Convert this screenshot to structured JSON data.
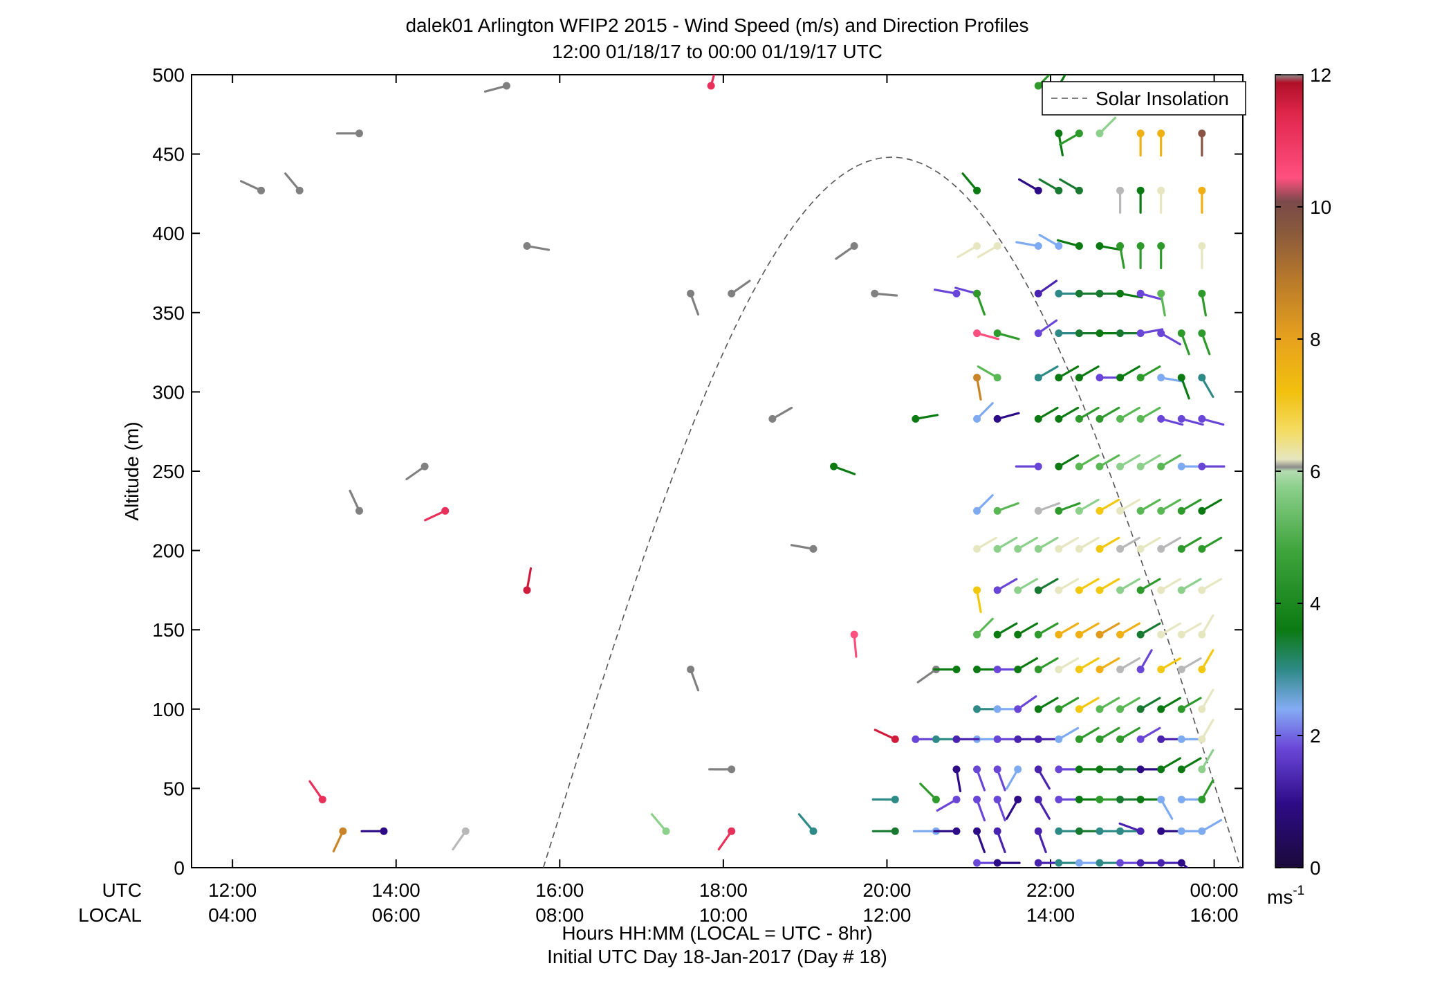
{
  "chart_data": {
    "type": "scatter",
    "subtype": "wind-barb-profile",
    "title": "dalek01 Arlington WFIP2 2015 - Wind Speed (m/s) and Direction Profiles",
    "subtitle": "12:00 01/18/17 to 00:00 01/19/17  UTC",
    "ylabel": "Altitude (m)",
    "xlabel": "Hours HH:MM  (LOCAL = UTC - 8hr)",
    "xlabel2": "Initial UTC Day 18-Jan-2017 (Day # 18)",
    "row_label_utc": "UTC",
    "row_label_local": "LOCAL",
    "x_range_hours": [
      11.5,
      24.35
    ],
    "ylim": [
      0,
      500
    ],
    "y_ticks": [
      0,
      50,
      100,
      150,
      200,
      250,
      300,
      350,
      400,
      450,
      500
    ],
    "x_ticks": [
      {
        "h": 12,
        "utc": "12:00",
        "local": "04:00"
      },
      {
        "h": 14,
        "utc": "14:00",
        "local": "06:00"
      },
      {
        "h": 16,
        "utc": "16:00",
        "local": "08:00"
      },
      {
        "h": 18,
        "utc": "18:00",
        "local": "10:00"
      },
      {
        "h": 20,
        "utc": "20:00",
        "local": "12:00"
      },
      {
        "h": 22,
        "utc": "22:00",
        "local": "14:00"
      },
      {
        "h": 24,
        "utc": "00:00",
        "local": "16:00"
      }
    ],
    "legend": {
      "label": "Solar Insolation",
      "position": "top-right"
    },
    "solar_insolation": {
      "start_h": 15.8,
      "peak_h": 20.08,
      "end_h": 24.32,
      "peak_alt": 448
    },
    "colorbar": {
      "min": 0,
      "max": 12,
      "ticks": [
        0,
        2,
        4,
        6,
        8,
        10,
        12
      ],
      "unit": "ms-1",
      "unit_base": "ms",
      "unit_exp": "-1"
    },
    "barbs_format": "[hour_utc, altitude_m, speed_m_s, barb_angle_deg_math]",
    "barbs": [
      [
        12.35,
        427,
        12.5,
        155
      ],
      [
        12.82,
        427,
        12.5,
        130
      ],
      [
        13.55,
        463,
        12.5,
        180
      ],
      [
        15.35,
        493,
        12.5,
        195
      ],
      [
        15.6,
        392,
        12.5,
        -10
      ],
      [
        14.35,
        253,
        12.5,
        215
      ],
      [
        13.55,
        225,
        12.5,
        115
      ],
      [
        14.6,
        225,
        11.0,
        205
      ],
      [
        13.1,
        43,
        11.0,
        125
      ],
      [
        15.6,
        175,
        11.3,
        80
      ],
      [
        13.35,
        23,
        8.5,
        245
      ],
      [
        13.85,
        23,
        0.5,
        180
      ],
      [
        14.85,
        23,
        6.0,
        235
      ],
      [
        17.85,
        493,
        11.0,
        75
      ],
      [
        17.6,
        362,
        12.5,
        -70
      ],
      [
        18.1,
        362,
        12.5,
        35
      ],
      [
        17.6,
        125,
        12.5,
        -70
      ],
      [
        18.1,
        62,
        12.5,
        180
      ],
      [
        17.3,
        23,
        5.5,
        130
      ],
      [
        18.1,
        23,
        11.0,
        235
      ],
      [
        18.6,
        283,
        12.5,
        30
      ],
      [
        19.1,
        23,
        2.5,
        130
      ],
      [
        19.1,
        201,
        12.5,
        170
      ],
      [
        19.6,
        392,
        12.5,
        215
      ],
      [
        19.35,
        253,
        3.8,
        -20
      ],
      [
        19.6,
        147,
        10.5,
        -85
      ],
      [
        19.85,
        362,
        12.5,
        -5
      ],
      [
        20.6,
        125,
        12.5,
        215
      ],
      [
        20.35,
        283,
        3.8,
        10
      ],
      [
        20.1,
        81,
        11.3,
        155
      ],
      [
        20.35,
        81,
        1.5,
        0
      ],
      [
        20.6,
        81,
        2.5,
        0
      ],
      [
        20.1,
        43,
        2.5,
        180
      ],
      [
        20.6,
        43,
        4.5,
        135
      ],
      [
        20.1,
        23,
        3.0,
        180
      ],
      [
        20.6,
        23,
        2.0,
        180
      ],
      [
        20.85,
        23,
        0.5,
        180
      ],
      [
        21.1,
        427,
        3.8,
        130
      ],
      [
        21.1,
        392,
        6.5,
        210
      ],
      [
        21.1,
        362,
        1.5,
        165
      ],
      [
        21.1,
        337,
        10.5,
        -15
      ],
      [
        21.1,
        309,
        8.5,
        -80
      ],
      [
        21.1,
        283,
        2.0,
        45
      ],
      [
        21.1,
        225,
        2.0,
        45
      ],
      [
        21.1,
        201,
        6.5,
        30
      ],
      [
        21.1,
        175,
        7.0,
        -80
      ],
      [
        21.1,
        147,
        5.0,
        45
      ],
      [
        21.1,
        125,
        3.8,
        0
      ],
      [
        21.1,
        100,
        2.5,
        0
      ],
      [
        21.1,
        81,
        2.0,
        0
      ],
      [
        21.1,
        62,
        1.5,
        -70
      ],
      [
        21.1,
        43,
        1.5,
        -70
      ],
      [
        21.1,
        23,
        0.5,
        -70
      ],
      [
        21.1,
        3,
        1.5,
        0
      ],
      [
        20.85,
        81,
        1.0,
        0
      ],
      [
        20.85,
        62,
        0.5,
        -80
      ],
      [
        20.85,
        43,
        1.5,
        210
      ],
      [
        20.85,
        125,
        3.5,
        180
      ],
      [
        20.85,
        362,
        1.5,
        170
      ],
      [
        21.35,
        309,
        5.0,
        150
      ],
      [
        21.35,
        283,
        0.5,
        15
      ],
      [
        21.35,
        225,
        5.0,
        20
      ],
      [
        21.35,
        201,
        5.5,
        30
      ],
      [
        21.35,
        175,
        1.5,
        30
      ],
      [
        21.35,
        147,
        3.8,
        30
      ],
      [
        21.35,
        125,
        1.5,
        0
      ],
      [
        21.35,
        100,
        2.0,
        0
      ],
      [
        21.35,
        81,
        1.5,
        0
      ],
      [
        21.35,
        62,
        1.5,
        -70
      ],
      [
        21.35,
        43,
        1.5,
        -70
      ],
      [
        21.35,
        23,
        1.0,
        -70
      ],
      [
        21.35,
        3,
        0.5,
        0
      ],
      [
        21.6,
        81,
        1.0,
        0
      ],
      [
        21.6,
        62,
        2.0,
        240
      ],
      [
        21.6,
        43,
        0.5,
        240
      ],
      [
        21.1,
        362,
        4.5,
        -70
      ],
      [
        21.35,
        337,
        4.0,
        -15
      ],
      [
        21.35,
        392,
        6.5,
        210
      ],
      [
        21.85,
        493,
        4.5,
        45
      ],
      [
        21.85,
        427,
        0.5,
        150
      ],
      [
        21.85,
        392,
        2.0,
        170
      ],
      [
        21.85,
        362,
        1.0,
        35
      ],
      [
        21.85,
        337,
        1.5,
        35
      ],
      [
        21.85,
        309,
        2.5,
        30
      ],
      [
        21.85,
        283,
        3.8,
        30
      ],
      [
        21.85,
        253,
        1.5,
        180
      ],
      [
        21.85,
        225,
        6.0,
        20
      ],
      [
        21.85,
        201,
        5.5,
        30
      ],
      [
        21.85,
        175,
        3.0,
        30
      ],
      [
        21.85,
        147,
        4.5,
        30
      ],
      [
        21.85,
        125,
        4.0,
        30
      ],
      [
        21.85,
        100,
        3.5,
        30
      ],
      [
        21.85,
        81,
        1.0,
        0
      ],
      [
        21.85,
        62,
        1.0,
        -60
      ],
      [
        21.85,
        43,
        1.0,
        -60
      ],
      [
        21.85,
        23,
        1.0,
        -70
      ],
      [
        21.85,
        3,
        1.0,
        0
      ],
      [
        21.6,
        100,
        1.5,
        35
      ],
      [
        21.6,
        125,
        3.5,
        30
      ],
      [
        21.6,
        147,
        3.5,
        30
      ],
      [
        21.6,
        175,
        5.5,
        30
      ],
      [
        21.6,
        201,
        5.5,
        30
      ],
      [
        22.1,
        493,
        3.8,
        60
      ],
      [
        22.1,
        463,
        3.8,
        -80
      ],
      [
        22.1,
        427,
        3.0,
        150
      ],
      [
        22.1,
        392,
        2.0,
        150
      ],
      [
        22.1,
        362,
        2.5,
        0
      ],
      [
        22.1,
        337,
        2.5,
        0
      ],
      [
        22.1,
        309,
        3.8,
        30
      ],
      [
        22.1,
        283,
        3.8,
        30
      ],
      [
        22.1,
        253,
        3.8,
        30
      ],
      [
        22.1,
        225,
        4.5,
        20
      ],
      [
        22.1,
        201,
        6.5,
        30
      ],
      [
        22.1,
        175,
        6.5,
        30
      ],
      [
        22.1,
        147,
        7.5,
        30
      ],
      [
        22.1,
        125,
        6.5,
        30
      ],
      [
        22.1,
        100,
        4.0,
        30
      ],
      [
        22.1,
        81,
        2.0,
        30
      ],
      [
        22.1,
        62,
        1.5,
        0
      ],
      [
        22.1,
        43,
        1.5,
        0
      ],
      [
        22.1,
        23,
        2.5,
        0
      ],
      [
        22.1,
        3,
        2.5,
        0
      ],
      [
        22.35,
        463,
        4.5,
        210
      ],
      [
        22.35,
        427,
        3.0,
        150
      ],
      [
        22.35,
        392,
        3.8,
        165
      ],
      [
        22.35,
        362,
        3.0,
        0
      ],
      [
        22.35,
        337,
        3.0,
        0
      ],
      [
        22.35,
        309,
        3.8,
        30
      ],
      [
        22.35,
        283,
        4.0,
        30
      ],
      [
        22.35,
        253,
        5.0,
        30
      ],
      [
        22.35,
        225,
        5.5,
        30
      ],
      [
        22.35,
        201,
        6.5,
        30
      ],
      [
        22.35,
        175,
        7.0,
        30
      ],
      [
        22.35,
        147,
        7.5,
        30
      ],
      [
        22.35,
        125,
        7.0,
        30
      ],
      [
        22.35,
        100,
        7.0,
        30
      ],
      [
        22.35,
        81,
        4.0,
        30
      ],
      [
        22.35,
        62,
        3.5,
        0
      ],
      [
        22.35,
        43,
        3.5,
        0
      ],
      [
        22.35,
        23,
        3.0,
        0
      ],
      [
        22.35,
        3,
        2.0,
        0
      ],
      [
        22.6,
        463,
        5.5,
        45
      ],
      [
        22.6,
        392,
        3.8,
        -10
      ],
      [
        22.6,
        362,
        3.0,
        0
      ],
      [
        22.6,
        337,
        3.8,
        0
      ],
      [
        22.6,
        309,
        1.5,
        0
      ],
      [
        22.6,
        283,
        4.0,
        30
      ],
      [
        22.6,
        253,
        5.0,
        30
      ],
      [
        22.6,
        225,
        7.0,
        30
      ],
      [
        22.6,
        201,
        7.0,
        30
      ],
      [
        22.6,
        175,
        7.0,
        30
      ],
      [
        22.6,
        147,
        8.0,
        30
      ],
      [
        22.6,
        125,
        7.5,
        30
      ],
      [
        22.6,
        100,
        5.0,
        30
      ],
      [
        22.6,
        81,
        4.5,
        30
      ],
      [
        22.6,
        62,
        3.5,
        0
      ],
      [
        22.6,
        43,
        4.0,
        0
      ],
      [
        22.6,
        23,
        2.5,
        0
      ],
      [
        22.6,
        3,
        2.5,
        0
      ],
      [
        22.85,
        427,
        6.0,
        -90
      ],
      [
        22.85,
        392,
        4.5,
        -80
      ],
      [
        22.85,
        362,
        3.5,
        -10
      ],
      [
        22.85,
        337,
        3.0,
        0
      ],
      [
        22.85,
        309,
        3.8,
        30
      ],
      [
        22.85,
        283,
        5.0,
        30
      ],
      [
        22.85,
        253,
        5.5,
        30
      ],
      [
        22.85,
        225,
        6.5,
        30
      ],
      [
        22.85,
        201,
        6.0,
        30
      ],
      [
        22.85,
        175,
        5.5,
        30
      ],
      [
        22.85,
        147,
        7.5,
        30
      ],
      [
        22.85,
        125,
        6.0,
        30
      ],
      [
        22.85,
        100,
        5.0,
        30
      ],
      [
        22.85,
        81,
        4.0,
        30
      ],
      [
        22.85,
        62,
        3.0,
        0
      ],
      [
        22.85,
        43,
        3.0,
        0
      ],
      [
        22.85,
        23,
        2.5,
        0
      ],
      [
        22.85,
        3,
        1.5,
        0
      ],
      [
        23.1,
        463,
        7.5,
        -90
      ],
      [
        23.1,
        427,
        3.8,
        -90
      ],
      [
        23.1,
        392,
        4.5,
        -90
      ],
      [
        23.1,
        362,
        1.5,
        -15
      ],
      [
        23.1,
        337,
        1.5,
        10
      ],
      [
        23.1,
        309,
        4.0,
        30
      ],
      [
        23.1,
        283,
        5.0,
        30
      ],
      [
        23.1,
        253,
        5.5,
        30
      ],
      [
        23.1,
        225,
        5.0,
        30
      ],
      [
        23.1,
        201,
        6.5,
        30
      ],
      [
        23.1,
        175,
        4.0,
        30
      ],
      [
        23.1,
        147,
        3.0,
        30
      ],
      [
        23.1,
        125,
        1.5,
        60
      ],
      [
        23.1,
        100,
        3.0,
        30
      ],
      [
        23.1,
        81,
        1.5,
        30
      ],
      [
        23.1,
        62,
        0.5,
        0
      ],
      [
        23.1,
        43,
        3.5,
        0
      ],
      [
        23.1,
        23,
        1.0,
        160
      ],
      [
        23.1,
        3,
        1.0,
        0
      ],
      [
        23.35,
        463,
        7.5,
        -90
      ],
      [
        23.35,
        427,
        6.5,
        -90
      ],
      [
        23.35,
        392,
        4.5,
        -90
      ],
      [
        23.35,
        362,
        5.0,
        -80
      ],
      [
        23.35,
        337,
        1.5,
        -30
      ],
      [
        23.35,
        309,
        2.0,
        -10
      ],
      [
        23.35,
        283,
        1.5,
        -15
      ],
      [
        23.35,
        253,
        5.0,
        30
      ],
      [
        23.35,
        225,
        5.0,
        30
      ],
      [
        23.35,
        201,
        6.0,
        30
      ],
      [
        23.35,
        175,
        6.5,
        30
      ],
      [
        23.35,
        147,
        6.5,
        30
      ],
      [
        23.35,
        125,
        7.0,
        30
      ],
      [
        23.35,
        100,
        3.5,
        30
      ],
      [
        23.35,
        81,
        1.0,
        0
      ],
      [
        23.35,
        62,
        3.5,
        30
      ],
      [
        23.35,
        43,
        2.0,
        -60
      ],
      [
        23.35,
        23,
        0.5,
        0
      ],
      [
        23.35,
        3,
        1.0,
        0
      ],
      [
        23.6,
        337,
        4.0,
        -70
      ],
      [
        23.6,
        309,
        3.5,
        -70
      ],
      [
        23.6,
        283,
        1.5,
        -15
      ],
      [
        23.6,
        253,
        2.0,
        0
      ],
      [
        23.6,
        225,
        4.0,
        30
      ],
      [
        23.6,
        201,
        4.0,
        30
      ],
      [
        23.6,
        175,
        5.5,
        30
      ],
      [
        23.6,
        147,
        6.5,
        30
      ],
      [
        23.6,
        125,
        6.0,
        30
      ],
      [
        23.6,
        100,
        4.5,
        30
      ],
      [
        23.6,
        81,
        2.0,
        0
      ],
      [
        23.6,
        62,
        3.5,
        30
      ],
      [
        23.6,
        43,
        2.0,
        0
      ],
      [
        23.6,
        23,
        2.0,
        0
      ],
      [
        23.6,
        3,
        0.5,
        -40
      ],
      [
        23.85,
        463,
        9.5,
        -90
      ],
      [
        23.85,
        427,
        7.5,
        -90
      ],
      [
        23.85,
        392,
        6.5,
        -90
      ],
      [
        23.85,
        362,
        4.5,
        -80
      ],
      [
        23.85,
        337,
        4.0,
        -70
      ],
      [
        23.85,
        309,
        2.5,
        -60
      ],
      [
        23.85,
        283,
        1.5,
        -15
      ],
      [
        23.85,
        253,
        1.5,
        0
      ],
      [
        23.85,
        225,
        3.8,
        30
      ],
      [
        23.85,
        201,
        4.0,
        30
      ],
      [
        23.85,
        175,
        6.5,
        30
      ],
      [
        23.85,
        147,
        6.5,
        60
      ],
      [
        23.85,
        125,
        7.0,
        60
      ],
      [
        23.85,
        100,
        6.5,
        60
      ],
      [
        23.85,
        81,
        6.5,
        60
      ],
      [
        23.85,
        62,
        5.5,
        60
      ],
      [
        23.85,
        43,
        4.0,
        60
      ],
      [
        23.85,
        23,
        2.0,
        30
      ]
    ]
  }
}
